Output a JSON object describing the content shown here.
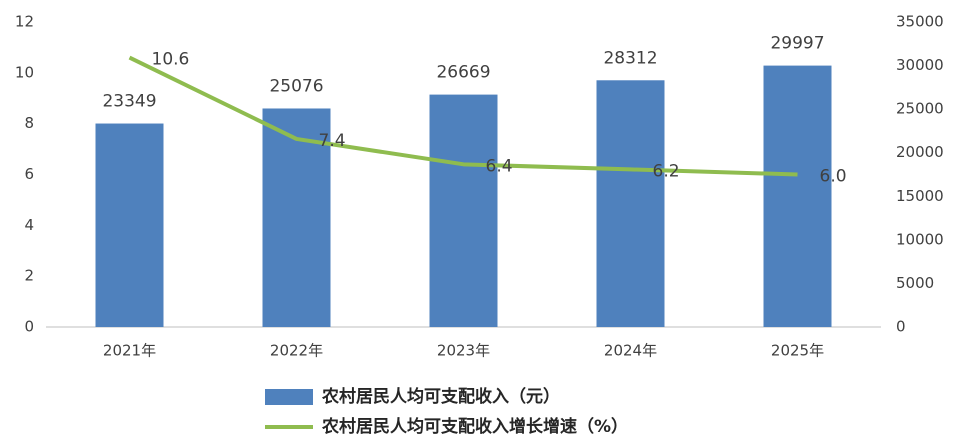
{
  "chart_data": {
    "type": "bar-line",
    "categories": [
      "2021年",
      "2022年",
      "2023年",
      "2024年",
      "2025年"
    ],
    "series": [
      {
        "name": "农村居民人均可支配收入（元）",
        "type": "bar",
        "axis": "y2",
        "color": "#4f81bd",
        "values": [
          23349,
          25076,
          26669,
          28312,
          29997
        ]
      },
      {
        "name": "农村居民人均可支配收入增长增速（%）",
        "type": "line",
        "axis": "y",
        "color": "#8fbc4f",
        "values": [
          10.6,
          7.4,
          6.4,
          6.2,
          6.0
        ],
        "value_labels": [
          "10.6",
          "7.4",
          "6.4",
          "6.2",
          "6.0"
        ]
      }
    ],
    "ylim": [
      0,
      12
    ],
    "yticks": [
      0,
      2,
      4,
      6,
      8,
      10,
      12
    ],
    "y2lim": [
      0,
      35000
    ],
    "y2ticks": [
      0,
      5000,
      10000,
      15000,
      20000,
      25000,
      30000,
      35000
    ],
    "grid": false,
    "legend": "bottom"
  }
}
